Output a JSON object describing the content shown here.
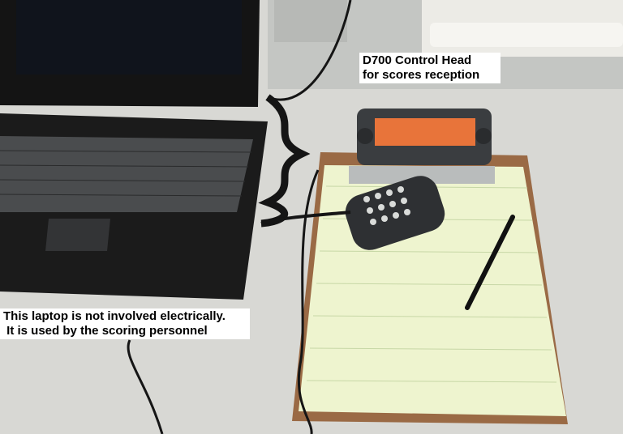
{
  "photo": {
    "subject": "laptop and radio control head with microphone on a clipboard notepad",
    "colors": {
      "desk": "#d8d8d4",
      "laptop": "#1b1b1b",
      "notepad": "#eef4cf",
      "clipboard": "#9a6a45",
      "radio_display": "#e8743a"
    }
  },
  "captions": {
    "radio": {
      "line1": "D700 Control Head",
      "line2": "for scores reception"
    },
    "laptop": {
      "line1": "This laptop is not involved electrically.",
      "line2": " It is used by the scoring personnel"
    }
  }
}
